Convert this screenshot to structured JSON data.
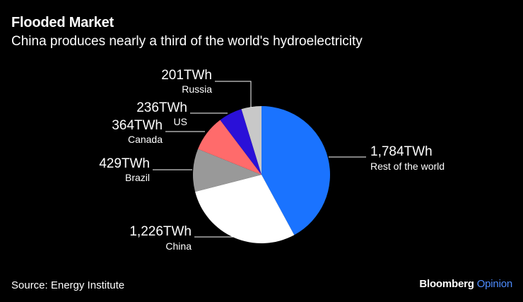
{
  "title": "Flooded Market",
  "subtitle": "China produces nearly a third of the world's hydroelectricity",
  "source": "Source: Energy Institute",
  "brand": {
    "name": "Bloomberg",
    "suffix": "Opinion",
    "suffix_color": "#4d8cff"
  },
  "chart_data": {
    "type": "pie",
    "unit": "TWh",
    "slices": [
      {
        "name": "Rest of the world",
        "value": 1784,
        "value_label": "1,784TWh",
        "color": "#1a73ff"
      },
      {
        "name": "China",
        "value": 1226,
        "value_label": "1,226TWh",
        "color": "#ffffff"
      },
      {
        "name": "Brazil",
        "value": 429,
        "value_label": "429TWh",
        "color": "#999999"
      },
      {
        "name": "Canada",
        "value": 364,
        "value_label": "364TWh",
        "color": "#ff6b6b"
      },
      {
        "name": "US",
        "value": 236,
        "value_label": "236TWh",
        "color": "#2a10d8"
      },
      {
        "name": "Russia",
        "value": 201,
        "value_label": "201TWh",
        "color": "#c8c8c8"
      }
    ]
  }
}
